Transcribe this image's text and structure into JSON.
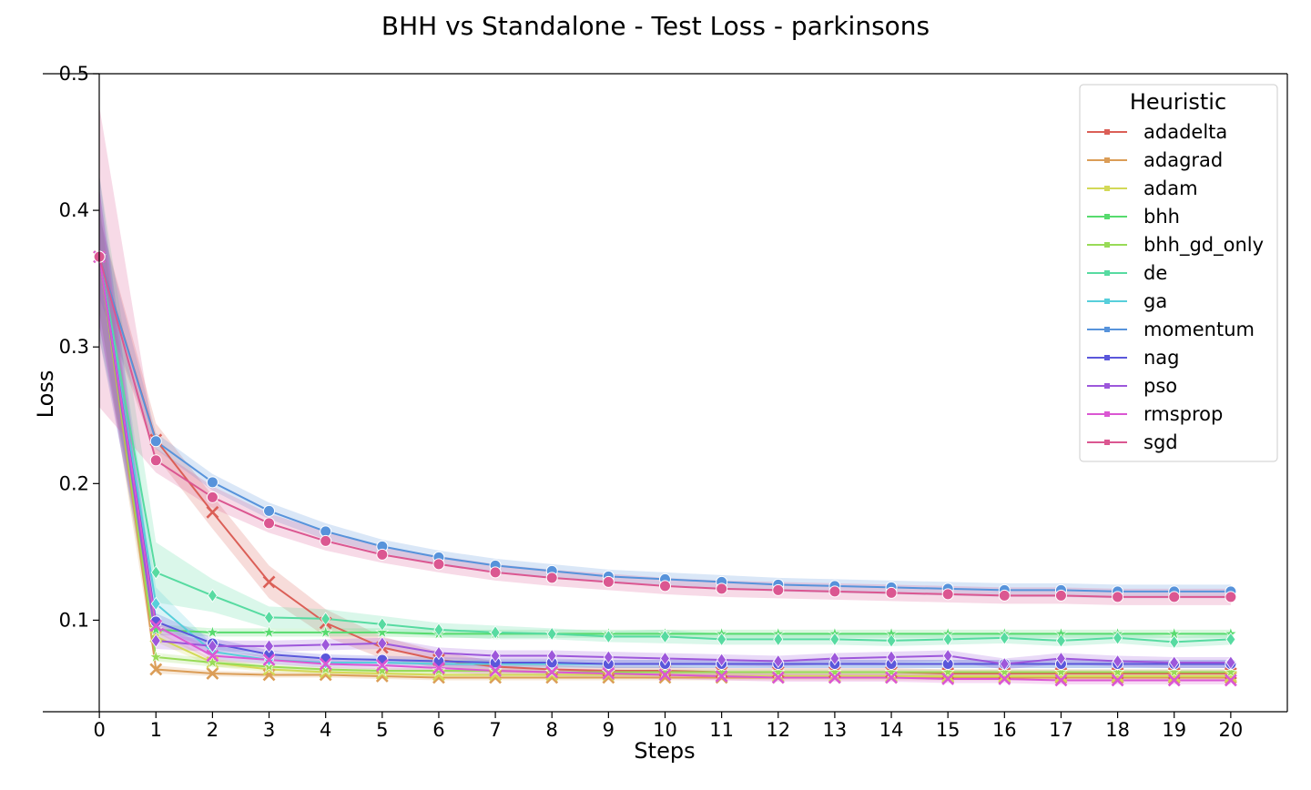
{
  "chart_data": {
    "type": "line",
    "title": "BHH vs Standalone - Test Loss - parkinsons",
    "xlabel": "Steps",
    "ylabel": "Loss",
    "xlim": [
      -1,
      21
    ],
    "ylim": [
      0.033,
      0.5
    ],
    "x": [
      0,
      1,
      2,
      3,
      4,
      5,
      6,
      7,
      8,
      9,
      10,
      11,
      12,
      13,
      14,
      15,
      16,
      17,
      18,
      19,
      20
    ],
    "x_ticks": [
      "0",
      "1",
      "2",
      "3",
      "4",
      "5",
      "6",
      "7",
      "8",
      "9",
      "10",
      "11",
      "12",
      "13",
      "14",
      "15",
      "16",
      "17",
      "18",
      "19",
      "20"
    ],
    "y_ticks": [
      {
        "value": 0.1,
        "label": "0.1"
      },
      {
        "value": 0.2,
        "label": "0.2"
      },
      {
        "value": 0.3,
        "label": "0.3"
      },
      {
        "value": 0.4,
        "label": "0.4"
      },
      {
        "value": 0.5,
        "label": "0.5"
      }
    ],
    "grid": false,
    "legend": {
      "title": "Heuristic",
      "placement": "top-right"
    },
    "series": [
      {
        "name": "adadelta",
        "color": "#db5f57",
        "marker": "x",
        "values": [
          0.366,
          0.232,
          0.179,
          0.128,
          0.098,
          0.08,
          0.071,
          0.066,
          0.064,
          0.063,
          0.063,
          0.062,
          0.062,
          0.062,
          0.062,
          0.061,
          0.061,
          0.061,
          0.061,
          0.061,
          0.061
        ],
        "band": [
          0.03,
          0.012,
          0.012,
          0.012,
          0.01,
          0.008,
          0.006,
          0.004,
          0.003,
          0.003,
          0.003,
          0.003,
          0.003,
          0.003,
          0.003,
          0.003,
          0.003,
          0.003,
          0.003,
          0.003,
          0.003
        ]
      },
      {
        "name": "adagrad",
        "color": "#db9d57",
        "marker": "x",
        "values": [
          0.366,
          0.064,
          0.061,
          0.06,
          0.06,
          0.059,
          0.058,
          0.058,
          0.058,
          0.058,
          0.058,
          0.058,
          0.058,
          0.058,
          0.058,
          0.058,
          0.058,
          0.058,
          0.058,
          0.058,
          0.058
        ],
        "band": [
          0.04,
          0.003,
          0.002,
          0.002,
          0.002,
          0.002,
          0.002,
          0.002,
          0.002,
          0.002,
          0.002,
          0.002,
          0.002,
          0.002,
          0.002,
          0.002,
          0.002,
          0.002,
          0.002,
          0.002,
          0.002
        ]
      },
      {
        "name": "adam",
        "color": "#d3d957",
        "marker": "x",
        "values": [
          0.366,
          0.088,
          0.069,
          0.064,
          0.062,
          0.061,
          0.06,
          0.06,
          0.06,
          0.06,
          0.06,
          0.059,
          0.059,
          0.059,
          0.059,
          0.059,
          0.059,
          0.059,
          0.059,
          0.059,
          0.059
        ],
        "band": [
          0.04,
          0.004,
          0.003,
          0.002,
          0.002,
          0.002,
          0.002,
          0.002,
          0.002,
          0.002,
          0.002,
          0.002,
          0.002,
          0.002,
          0.002,
          0.002,
          0.002,
          0.002,
          0.002,
          0.002,
          0.002
        ]
      },
      {
        "name": "bhh",
        "color": "#57db6e",
        "marker": "star",
        "values": [
          0.366,
          0.093,
          0.091,
          0.091,
          0.091,
          0.091,
          0.09,
          0.09,
          0.09,
          0.09,
          0.09,
          0.09,
          0.09,
          0.09,
          0.09,
          0.09,
          0.09,
          0.09,
          0.09,
          0.09,
          0.09
        ],
        "band": [
          0.04,
          0.004,
          0.003,
          0.003,
          0.003,
          0.003,
          0.003,
          0.003,
          0.003,
          0.003,
          0.003,
          0.003,
          0.003,
          0.003,
          0.003,
          0.003,
          0.003,
          0.003,
          0.003,
          0.003,
          0.003
        ]
      },
      {
        "name": "bhh_gd_only",
        "color": "#98db57",
        "marker": "star",
        "values": [
          0.366,
          0.073,
          0.069,
          0.066,
          0.064,
          0.063,
          0.063,
          0.063,
          0.062,
          0.062,
          0.062,
          0.062,
          0.062,
          0.062,
          0.062,
          0.062,
          0.062,
          0.062,
          0.062,
          0.062,
          0.062
        ],
        "band": [
          0.04,
          0.003,
          0.003,
          0.002,
          0.002,
          0.002,
          0.002,
          0.002,
          0.002,
          0.002,
          0.002,
          0.002,
          0.002,
          0.002,
          0.002,
          0.002,
          0.002,
          0.002,
          0.002,
          0.002,
          0.002
        ]
      },
      {
        "name": "de",
        "color": "#57dba1",
        "marker": "diamond",
        "values": [
          0.366,
          0.135,
          0.118,
          0.102,
          0.101,
          0.097,
          0.093,
          0.091,
          0.09,
          0.088,
          0.088,
          0.086,
          0.086,
          0.086,
          0.085,
          0.086,
          0.087,
          0.085,
          0.087,
          0.084,
          0.086
        ],
        "band": [
          0.06,
          0.022,
          0.012,
          0.008,
          0.007,
          0.006,
          0.005,
          0.005,
          0.004,
          0.004,
          0.005,
          0.004,
          0.004,
          0.004,
          0.004,
          0.004,
          0.004,
          0.004,
          0.004,
          0.004,
          0.004
        ]
      },
      {
        "name": "ga",
        "color": "#57cfdb",
        "marker": "diamond",
        "values": [
          0.366,
          0.112,
          0.077,
          0.071,
          0.069,
          0.069,
          0.068,
          0.068,
          0.068,
          0.068,
          0.068,
          0.068,
          0.068,
          0.068,
          0.068,
          0.068,
          0.068,
          0.068,
          0.068,
          0.068,
          0.068
        ],
        "band": [
          0.05,
          0.012,
          0.005,
          0.003,
          0.003,
          0.003,
          0.003,
          0.003,
          0.003,
          0.003,
          0.003,
          0.003,
          0.003,
          0.003,
          0.003,
          0.003,
          0.003,
          0.003,
          0.003,
          0.003,
          0.003
        ]
      },
      {
        "name": "momentum",
        "color": "#5793db",
        "marker": "circle",
        "values": [
          0.366,
          0.231,
          0.201,
          0.18,
          0.165,
          0.154,
          0.146,
          0.14,
          0.136,
          0.132,
          0.13,
          0.128,
          0.126,
          0.125,
          0.124,
          0.123,
          0.122,
          0.122,
          0.121,
          0.121,
          0.121
        ],
        "band": [
          0.03,
          0.006,
          0.006,
          0.006,
          0.006,
          0.005,
          0.005,
          0.005,
          0.005,
          0.005,
          0.005,
          0.005,
          0.005,
          0.005,
          0.005,
          0.005,
          0.005,
          0.005,
          0.005,
          0.005,
          0.005
        ]
      },
      {
        "name": "nag",
        "color": "#5a57db",
        "marker": "circle",
        "values": [
          0.366,
          0.099,
          0.083,
          0.075,
          0.072,
          0.071,
          0.07,
          0.069,
          0.069,
          0.068,
          0.068,
          0.068,
          0.068,
          0.068,
          0.068,
          0.068,
          0.068,
          0.068,
          0.068,
          0.068,
          0.068
        ],
        "band": [
          0.06,
          0.006,
          0.004,
          0.003,
          0.003,
          0.003,
          0.003,
          0.003,
          0.003,
          0.003,
          0.003,
          0.003,
          0.003,
          0.003,
          0.003,
          0.003,
          0.003,
          0.003,
          0.003,
          0.003,
          0.003
        ]
      },
      {
        "name": "pso",
        "color": "#9d57db",
        "marker": "diamond",
        "values": [
          0.366,
          0.085,
          0.081,
          0.081,
          0.082,
          0.083,
          0.076,
          0.074,
          0.074,
          0.073,
          0.072,
          0.071,
          0.07,
          0.072,
          0.073,
          0.074,
          0.068,
          0.072,
          0.07,
          0.069,
          0.069
        ],
        "band": [
          0.05,
          0.006,
          0.004,
          0.004,
          0.004,
          0.004,
          0.004,
          0.004,
          0.004,
          0.004,
          0.004,
          0.004,
          0.004,
          0.004,
          0.004,
          0.004,
          0.004,
          0.004,
          0.004,
          0.004,
          0.004
        ]
      },
      {
        "name": "rmsprop",
        "color": "#db57d3",
        "marker": "x",
        "values": [
          0.366,
          0.096,
          0.074,
          0.071,
          0.068,
          0.067,
          0.065,
          0.063,
          0.062,
          0.061,
          0.06,
          0.059,
          0.058,
          0.058,
          0.058,
          0.057,
          0.057,
          0.056,
          0.056,
          0.056,
          0.056
        ],
        "band": [
          0.05,
          0.005,
          0.004,
          0.003,
          0.003,
          0.003,
          0.003,
          0.003,
          0.003,
          0.003,
          0.003,
          0.003,
          0.003,
          0.003,
          0.003,
          0.003,
          0.003,
          0.003,
          0.003,
          0.003,
          0.003
        ]
      },
      {
        "name": "sgd",
        "color": "#db5791",
        "marker": "circle",
        "values": [
          0.366,
          0.217,
          0.19,
          0.171,
          0.158,
          0.148,
          0.141,
          0.135,
          0.131,
          0.128,
          0.125,
          0.123,
          0.122,
          0.121,
          0.12,
          0.119,
          0.118,
          0.118,
          0.117,
          0.117,
          0.117
        ],
        "band": [
          0.11,
          0.009,
          0.008,
          0.007,
          0.007,
          0.006,
          0.006,
          0.006,
          0.006,
          0.006,
          0.006,
          0.006,
          0.006,
          0.006,
          0.006,
          0.006,
          0.006,
          0.006,
          0.006,
          0.006,
          0.006
        ]
      }
    ]
  }
}
